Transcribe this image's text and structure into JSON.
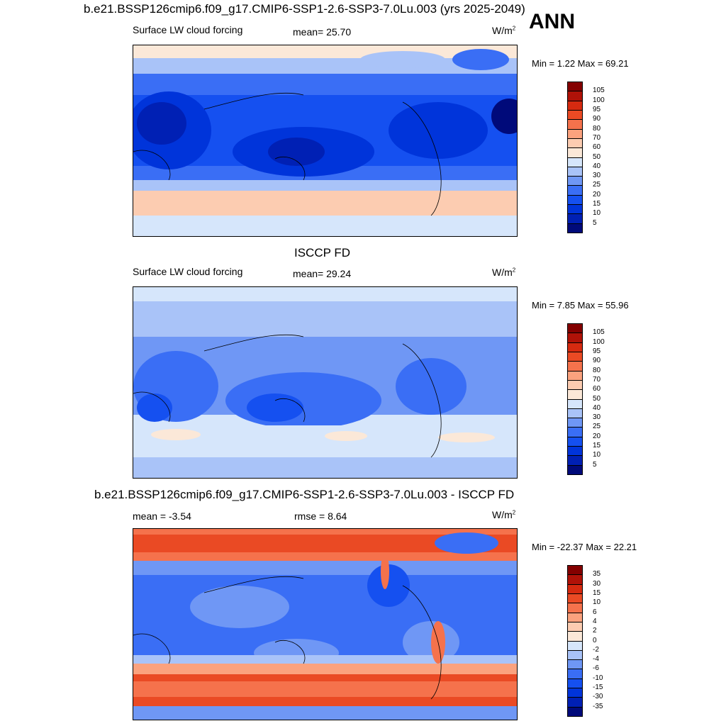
{
  "ann_label": "ANN",
  "panels": [
    {
      "title": "b.e21.BSSP126cmip6.f09_g17.CMIP6-SSP1-2.6-SSP3-7.0Lu.003 (yrs 2025-2049)",
      "left_label": "Surface LW cloud forcing",
      "center_label": "mean=  25.70",
      "units": "W/m",
      "units_exp": "2",
      "minmax": "Min =   1.22 Max =  69.21"
    },
    {
      "title": "ISCCP FD",
      "left_label": "Surface LW cloud forcing",
      "center_label": "mean=  29.24",
      "units": "W/m",
      "units_exp": "2",
      "minmax": "Min =   7.85 Max =  55.96"
    },
    {
      "title": "b.e21.BSSP126cmip6.f09_g17.CMIP6-SSP1-2.6-SSP3-7.0Lu.003 - ISCCP FD",
      "left_label": "mean =  -3.54",
      "center_label": "rmse =   8.64",
      "units": "W/m",
      "units_exp": "2",
      "minmax": "Min = -22.37 Max =  22.21"
    }
  ],
  "chart_data": [
    {
      "type": "heatmap",
      "title": "b.e21.BSSP126cmip6.f09_g17.CMIP6-SSP1-2.6-SSP3-7.0Lu.003 (yrs 2025-2049)",
      "variable": "Surface LW cloud forcing",
      "units": "W/m2",
      "mean": 25.7,
      "min": 1.22,
      "max": 69.21,
      "contour_levels": [
        5,
        10,
        15,
        20,
        25,
        30,
        40,
        50,
        60,
        70,
        80,
        90,
        95,
        100,
        105
      ],
      "colors": [
        "#000a7a",
        "#0020b4",
        "#0034da",
        "#1550f0",
        "#3a6ef5",
        "#6f97f5",
        "#a9c3f8",
        "#d6e6fb",
        "#fbe8d8",
        "#fcccb1",
        "#fba27e",
        "#f5724c",
        "#ea4a24",
        "#d62a10",
        "#b01208",
        "#840000"
      ]
    },
    {
      "type": "heatmap",
      "title": "ISCCP FD",
      "variable": "Surface LW cloud forcing",
      "units": "W/m2",
      "mean": 29.24,
      "min": 7.85,
      "max": 55.96,
      "contour_levels": [
        5,
        10,
        15,
        20,
        25,
        30,
        40,
        50,
        60,
        70,
        80,
        90,
        95,
        100,
        105
      ],
      "colors": [
        "#000a7a",
        "#0020b4",
        "#0034da",
        "#1550f0",
        "#3a6ef5",
        "#6f97f5",
        "#a9c3f8",
        "#d6e6fb",
        "#fbe8d8",
        "#fcccb1",
        "#fba27e",
        "#f5724c",
        "#ea4a24",
        "#d62a10",
        "#b01208",
        "#840000"
      ]
    },
    {
      "type": "heatmap",
      "title": "b.e21.BSSP126cmip6.f09_g17.CMIP6-SSP1-2.6-SSP3-7.0Lu.003 - ISCCP FD",
      "units": "W/m2",
      "mean": -3.54,
      "rmse": 8.64,
      "min": -22.37,
      "max": 22.21,
      "contour_levels": [
        -35,
        -30,
        -15,
        -10,
        -6,
        -4,
        -2,
        0,
        2,
        4,
        6,
        10,
        15,
        30,
        35
      ],
      "colors": [
        "#000a7a",
        "#0020b4",
        "#0034da",
        "#1550f0",
        "#3a6ef5",
        "#6f97f5",
        "#a9c3f8",
        "#d6e6fb",
        "#fbe8d8",
        "#fcccb1",
        "#fba27e",
        "#f5724c",
        "#ea4a24",
        "#d62a10",
        "#b01208",
        "#840000"
      ]
    }
  ]
}
